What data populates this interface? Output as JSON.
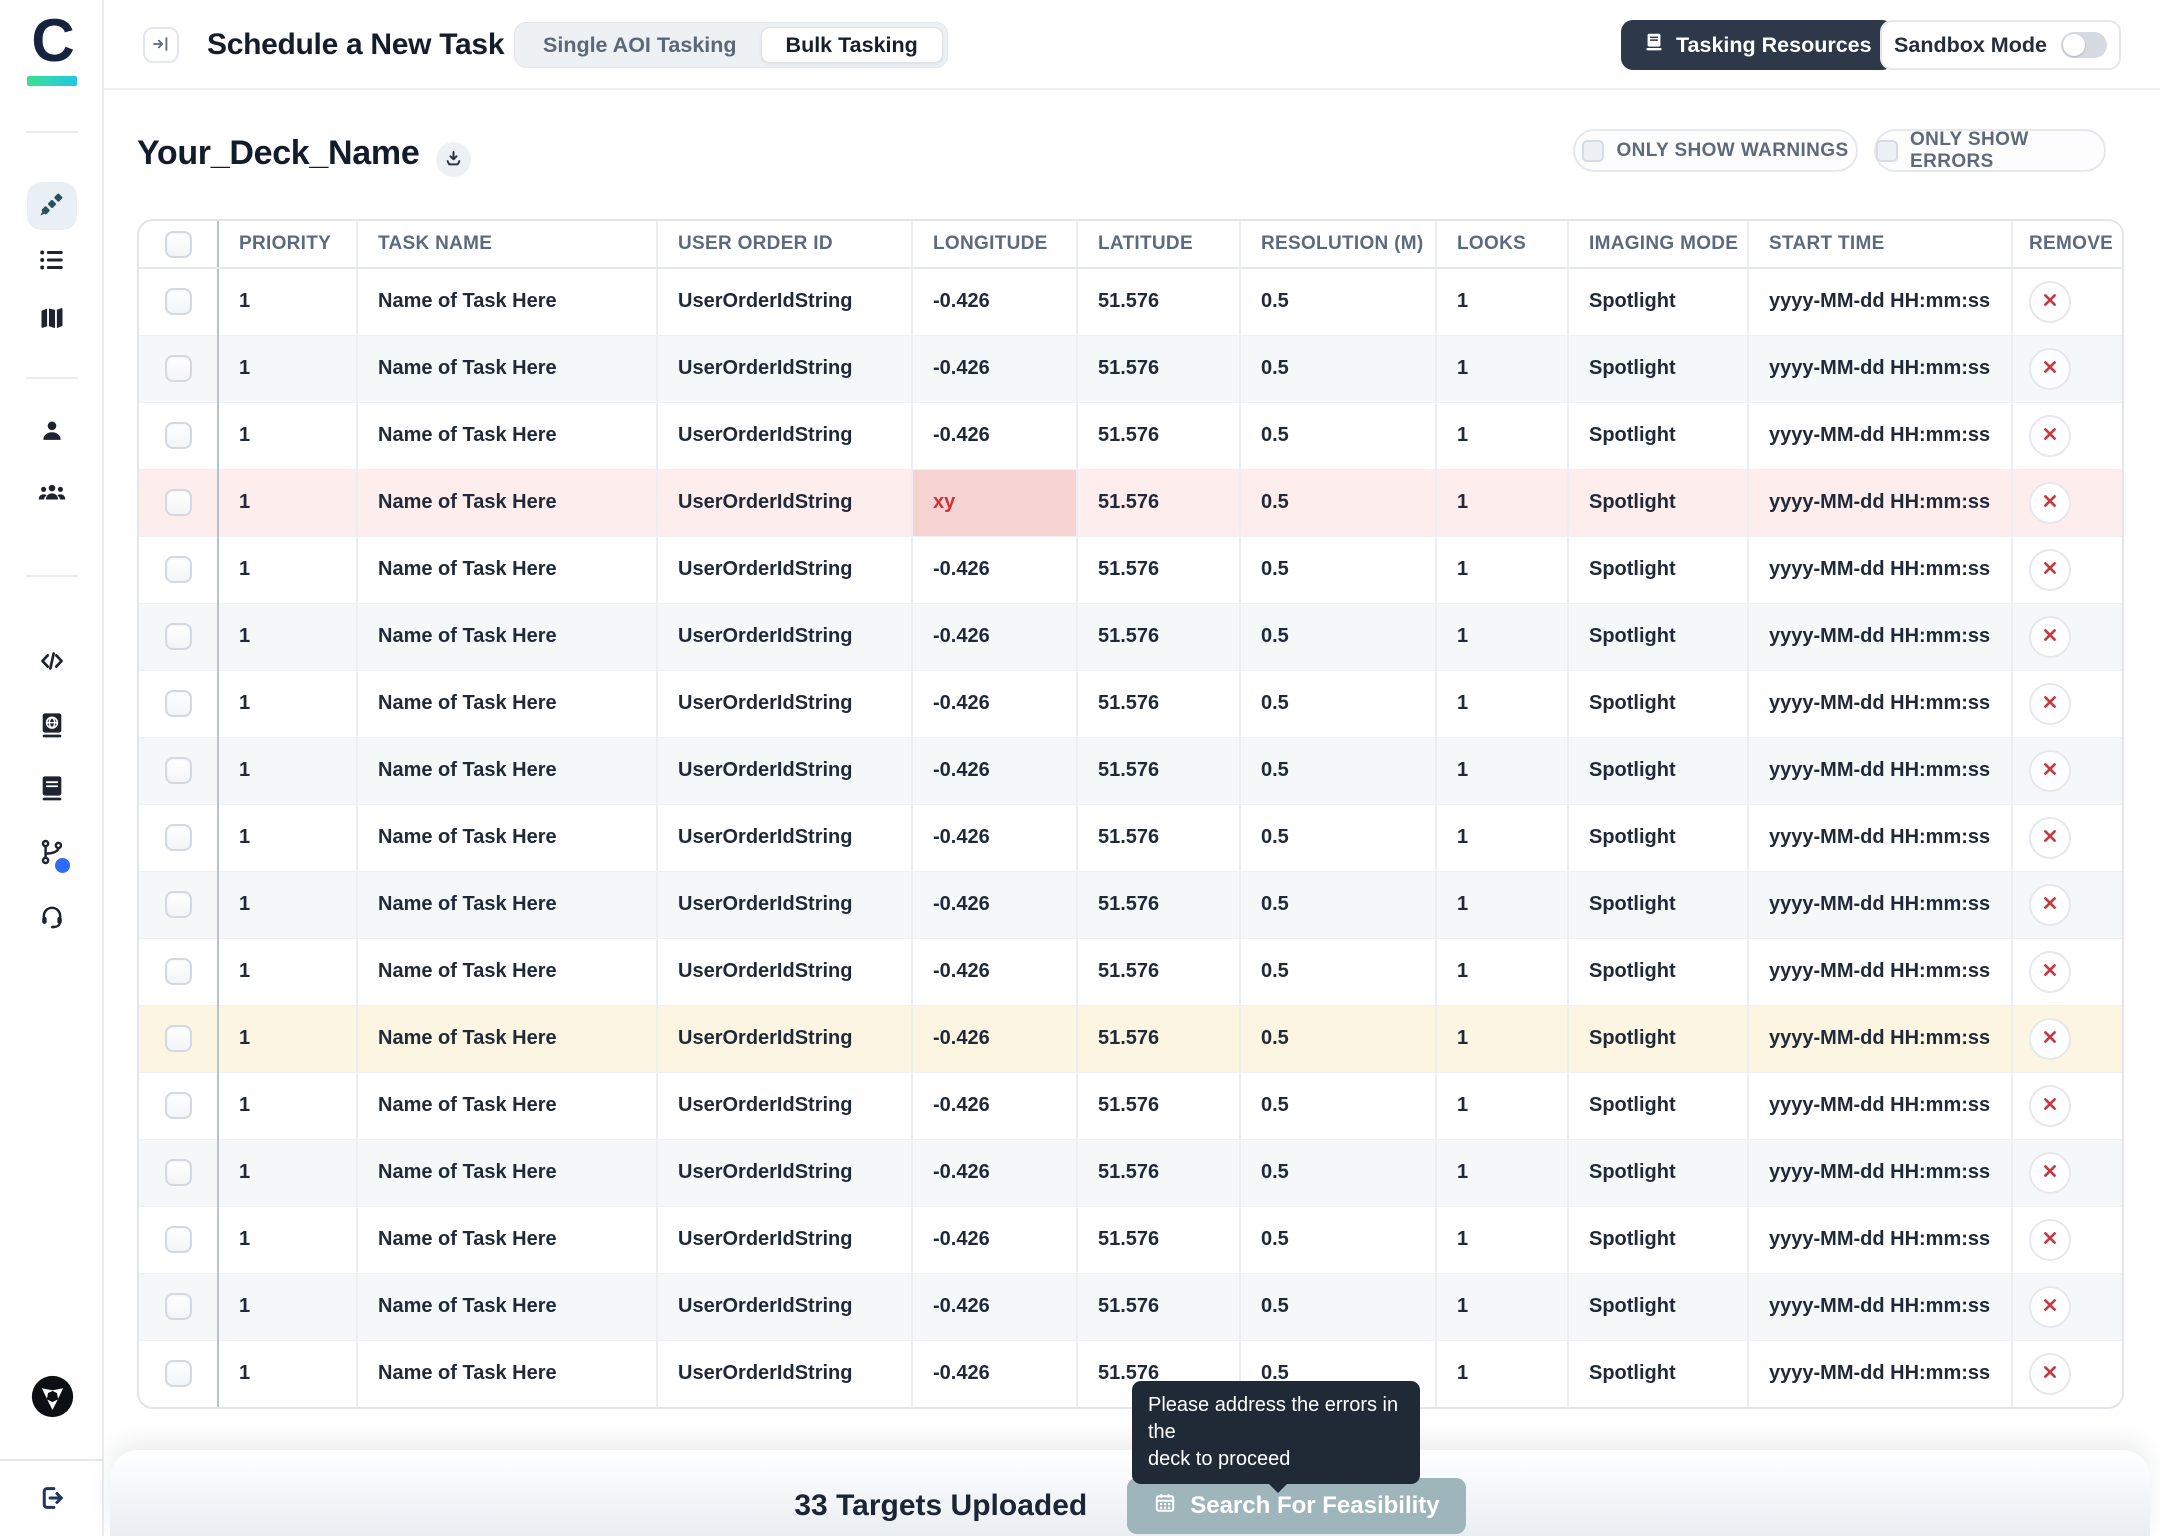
{
  "brand": {
    "logo_letter": "C"
  },
  "topbar": {
    "title": "Schedule a New Task",
    "segments": [
      {
        "label": "Single AOI Tasking",
        "active": false
      },
      {
        "label": "Bulk Tasking",
        "active": true
      }
    ],
    "tasking_resources_label": "Tasking Resources",
    "sandbox_label": "Sandbox Mode",
    "sandbox_on": false
  },
  "deck": {
    "title": "Your_Deck_Name",
    "filters": [
      {
        "label": "ONLY SHOW WARNINGS",
        "checked": false
      },
      {
        "label": "ONLY SHOW ERRORS",
        "checked": false
      }
    ]
  },
  "table": {
    "headers": [
      "PRIORITY",
      "TASK NAME",
      "USER ORDER ID",
      "LONGITUDE",
      "LATITUDE",
      "RESOLUTION (M)",
      "LOOKS",
      "IMAGING MODE",
      "START TIME",
      "REMOVE"
    ],
    "rows": [
      {
        "priority": "1",
        "task_name": "Name of Task Here",
        "user_order_id": "UserOrderIdString",
        "longitude": "-0.426",
        "latitude": "51.576",
        "resolution_m": "0.5",
        "looks": "1",
        "imaging_mode": "Spotlight",
        "start_time": "yyyy-MM-dd HH:mm:ss",
        "state": "default"
      },
      {
        "priority": "1",
        "task_name": "Name of Task Here",
        "user_order_id": "UserOrderIdString",
        "longitude": "-0.426",
        "latitude": "51.576",
        "resolution_m": "0.5",
        "looks": "1",
        "imaging_mode": "Spotlight",
        "start_time": "yyyy-MM-dd HH:mm:ss",
        "state": "default"
      },
      {
        "priority": "1",
        "task_name": "Name of Task Here",
        "user_order_id": "UserOrderIdString",
        "longitude": "-0.426",
        "latitude": "51.576",
        "resolution_m": "0.5",
        "looks": "1",
        "imaging_mode": "Spotlight",
        "start_time": "yyyy-MM-dd HH:mm:ss",
        "state": "default"
      },
      {
        "priority": "1",
        "task_name": "Name of Task Here",
        "user_order_id": "UserOrderIdString",
        "longitude": "xy",
        "latitude": "51.576",
        "resolution_m": "0.5",
        "looks": "1",
        "imaging_mode": "Spotlight",
        "start_time": "yyyy-MM-dd HH:mm:ss",
        "state": "error"
      },
      {
        "priority": "1",
        "task_name": "Name of Task Here",
        "user_order_id": "UserOrderIdString",
        "longitude": "-0.426",
        "latitude": "51.576",
        "resolution_m": "0.5",
        "looks": "1",
        "imaging_mode": "Spotlight",
        "start_time": "yyyy-MM-dd HH:mm:ss",
        "state": "default"
      },
      {
        "priority": "1",
        "task_name": "Name of Task Here",
        "user_order_id": "UserOrderIdString",
        "longitude": "-0.426",
        "latitude": "51.576",
        "resolution_m": "0.5",
        "looks": "1",
        "imaging_mode": "Spotlight",
        "start_time": "yyyy-MM-dd HH:mm:ss",
        "state": "default"
      },
      {
        "priority": "1",
        "task_name": "Name of Task Here",
        "user_order_id": "UserOrderIdString",
        "longitude": "-0.426",
        "latitude": "51.576",
        "resolution_m": "0.5",
        "looks": "1",
        "imaging_mode": "Spotlight",
        "start_time": "yyyy-MM-dd HH:mm:ss",
        "state": "default"
      },
      {
        "priority": "1",
        "task_name": "Name of Task Here",
        "user_order_id": "UserOrderIdString",
        "longitude": "-0.426",
        "latitude": "51.576",
        "resolution_m": "0.5",
        "looks": "1",
        "imaging_mode": "Spotlight",
        "start_time": "yyyy-MM-dd HH:mm:ss",
        "state": "default"
      },
      {
        "priority": "1",
        "task_name": "Name of Task Here",
        "user_order_id": "UserOrderIdString",
        "longitude": "-0.426",
        "latitude": "51.576",
        "resolution_m": "0.5",
        "looks": "1",
        "imaging_mode": "Spotlight",
        "start_time": "yyyy-MM-dd HH:mm:ss",
        "state": "default"
      },
      {
        "priority": "1",
        "task_name": "Name of Task Here",
        "user_order_id": "UserOrderIdString",
        "longitude": "-0.426",
        "latitude": "51.576",
        "resolution_m": "0.5",
        "looks": "1",
        "imaging_mode": "Spotlight",
        "start_time": "yyyy-MM-dd HH:mm:ss",
        "state": "default"
      },
      {
        "priority": "1",
        "task_name": "Name of Task Here",
        "user_order_id": "UserOrderIdString",
        "longitude": "-0.426",
        "latitude": "51.576",
        "resolution_m": "0.5",
        "looks": "1",
        "imaging_mode": "Spotlight",
        "start_time": "yyyy-MM-dd HH:mm:ss",
        "state": "default"
      },
      {
        "priority": "1",
        "task_name": "Name of Task Here",
        "user_order_id": "UserOrderIdString",
        "longitude": "-0.426",
        "latitude": "51.576",
        "resolution_m": "0.5",
        "looks": "1",
        "imaging_mode": "Spotlight",
        "start_time": "yyyy-MM-dd HH:mm:ss",
        "state": "warning"
      },
      {
        "priority": "1",
        "task_name": "Name of Task Here",
        "user_order_id": "UserOrderIdString",
        "longitude": "-0.426",
        "latitude": "51.576",
        "resolution_m": "0.5",
        "looks": "1",
        "imaging_mode": "Spotlight",
        "start_time": "yyyy-MM-dd HH:mm:ss",
        "state": "default"
      },
      {
        "priority": "1",
        "task_name": "Name of Task Here",
        "user_order_id": "UserOrderIdString",
        "longitude": "-0.426",
        "latitude": "51.576",
        "resolution_m": "0.5",
        "looks": "1",
        "imaging_mode": "Spotlight",
        "start_time": "yyyy-MM-dd HH:mm:ss",
        "state": "default"
      },
      {
        "priority": "1",
        "task_name": "Name of Task Here",
        "user_order_id": "UserOrderIdString",
        "longitude": "-0.426",
        "latitude": "51.576",
        "resolution_m": "0.5",
        "looks": "1",
        "imaging_mode": "Spotlight",
        "start_time": "yyyy-MM-dd HH:mm:ss",
        "state": "default"
      },
      {
        "priority": "1",
        "task_name": "Name of Task Here",
        "user_order_id": "UserOrderIdString",
        "longitude": "-0.426",
        "latitude": "51.576",
        "resolution_m": "0.5",
        "looks": "1",
        "imaging_mode": "Spotlight",
        "start_time": "yyyy-MM-dd HH:mm:ss",
        "state": "default"
      },
      {
        "priority": "1",
        "task_name": "Name of Task Here",
        "user_order_id": "UserOrderIdString",
        "longitude": "-0.426",
        "latitude": "51.576",
        "resolution_m": "0.5",
        "looks": "1",
        "imaging_mode": "Spotlight",
        "start_time": "yyyy-MM-dd HH:mm:ss",
        "state": "default"
      }
    ]
  },
  "footer": {
    "targets_label": "33 Targets Uploaded",
    "search_button_label": "Search For Feasibility",
    "tooltip_line1": "Please address the errors in the",
    "tooltip_line2": "deck to proceed"
  },
  "colors": {
    "error_text": "#ce3236",
    "error_row_bg": "#fdeded",
    "error_cell_bg": "#f7d2d2",
    "warning_row_bg": "#fbf5e2",
    "alt_row_bg": "#f5f8f9",
    "primary_dark_button": "#2d3848",
    "disabled_button_bg": "#9eb5bb",
    "remove_red": "#c43a42",
    "changelog_badge": "#2f6bff",
    "brand_gradient_start": "#3be08f",
    "brand_gradient_end": "#22c7e6"
  }
}
